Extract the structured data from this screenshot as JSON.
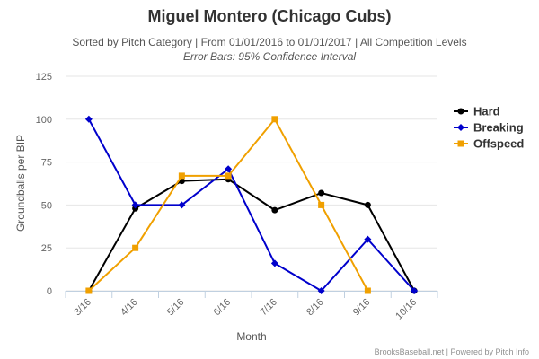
{
  "chart_data": {
    "type": "line",
    "title": "Miguel Montero (Chicago Cubs)",
    "subtitle": "Sorted by Pitch Category | From 01/01/2016 to 01/01/2017 | All Competition Levels",
    "subtitle2": "Error Bars: 95% Confidence Interval",
    "xlabel": "Month",
    "ylabel": "Groundballs per BIP",
    "categories": [
      "3/16",
      "4/16",
      "5/16",
      "6/16",
      "7/16",
      "8/16",
      "9/16",
      "10/16"
    ],
    "ylim": [
      0,
      125
    ],
    "yticks": [
      0,
      25,
      50,
      75,
      100,
      125
    ],
    "grid": true,
    "legend_position": "right",
    "series": [
      {
        "name": "Hard",
        "color": "#000000",
        "marker": "circle",
        "values": [
          0,
          48,
          64,
          65,
          47,
          57,
          50,
          0
        ]
      },
      {
        "name": "Breaking",
        "color": "#0000cc",
        "marker": "diamond",
        "values": [
          100,
          50,
          50,
          71,
          16,
          0,
          30,
          0
        ]
      },
      {
        "name": "Offspeed",
        "color": "#f0a000",
        "marker": "square",
        "values": [
          0,
          25,
          67,
          67,
          100,
          50,
          0,
          null
        ]
      }
    ],
    "credits": "BrooksBaseball.net | Powered by Pitch Info"
  }
}
